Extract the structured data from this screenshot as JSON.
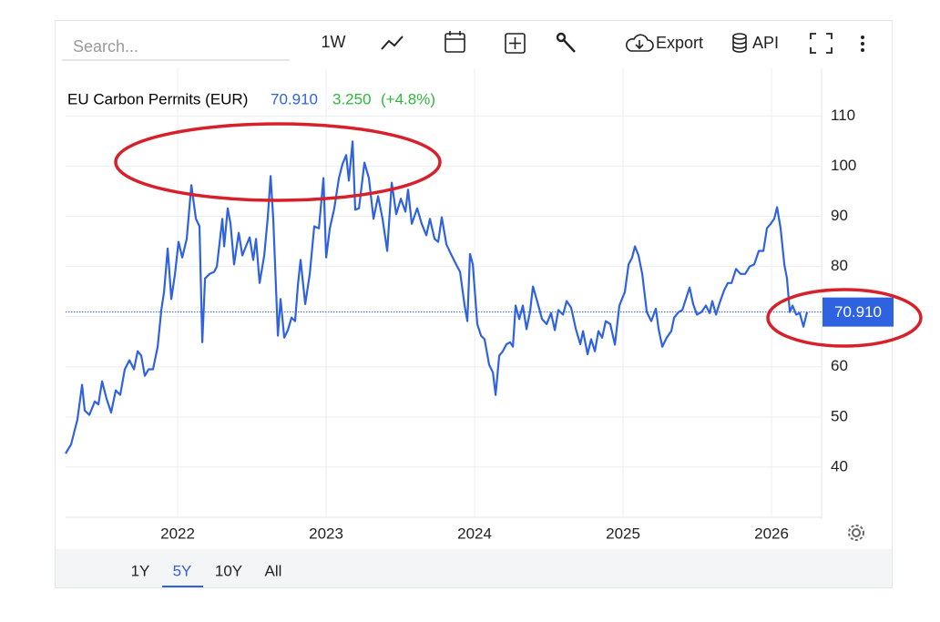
{
  "ui": {
    "search": "Search...",
    "interval": "1W",
    "export": "Export",
    "api": "API",
    "ranges": [
      "1Y",
      "5Y",
      "10Y",
      "All"
    ]
  },
  "chart_data": {
    "type": "line",
    "title": "EU Carbon Permits (EUR)",
    "price_label": "70.910",
    "change_label": "3.250",
    "change_pct_label": "(+4.8%)",
    "color": "#2f62e0",
    "price_color": "#2f62e0",
    "change_color": "#2db83d",
    "grid": true,
    "xlim": [
      2021.245,
      2026.337
    ],
    "ylim": [
      30,
      119.5
    ],
    "xticks": [
      2022,
      2023,
      2024,
      2025,
      2026
    ],
    "yticks": [
      40,
      50,
      60,
      70,
      80,
      90,
      100,
      110
    ],
    "x": [
      2021.245,
      2021.282,
      2021.325,
      2021.356,
      2021.374,
      2021.405,
      2021.442,
      2021.466,
      2021.491,
      2021.521,
      2021.552,
      2021.583,
      2021.613,
      2021.644,
      2021.675,
      2021.706,
      2021.73,
      2021.755,
      2021.779,
      2021.804,
      2021.834,
      2021.865,
      2021.89,
      2021.908,
      2021.933,
      2021.957,
      2021.982,
      2022.006,
      2022.031,
      2022.061,
      2022.092,
      2022.123,
      2022.147,
      2022.166,
      2022.184,
      2022.215,
      2022.245,
      2022.264,
      2022.301,
      2022.313,
      2022.337,
      2022.356,
      2022.38,
      2022.411,
      2022.436,
      2022.46,
      2022.485,
      2022.509,
      2022.528,
      2022.552,
      2022.583,
      2022.607,
      2022.626,
      2022.644,
      2022.675,
      2022.693,
      2022.718,
      2022.742,
      2022.767,
      2022.791,
      2022.81,
      2022.828,
      2022.859,
      2022.89,
      2022.92,
      2022.951,
      2022.982,
      2023.0,
      2023.025,
      2023.055,
      2023.086,
      2023.11,
      2023.135,
      2023.153,
      2023.178,
      2023.196,
      2023.221,
      2023.258,
      2023.288,
      2023.319,
      2023.35,
      2023.38,
      2023.411,
      2023.442,
      2023.472,
      2023.503,
      2023.534,
      2023.552,
      2023.577,
      2023.613,
      2023.644,
      2023.675,
      2023.699,
      2023.73,
      2023.755,
      2023.779,
      2023.81,
      2023.84,
      2023.871,
      2023.902,
      2023.933,
      2023.951,
      2023.969,
      2023.988,
      2024.018,
      2024.043,
      2024.067,
      2024.098,
      2024.123,
      2024.141,
      2024.166,
      2024.19,
      2024.215,
      2024.239,
      2024.258,
      2024.276,
      2024.301,
      2024.325,
      2024.35,
      2024.374,
      2024.393,
      2024.423,
      2024.454,
      2024.485,
      2024.515,
      2024.54,
      2024.564,
      2024.595,
      2024.62,
      2024.65,
      2024.681,
      2024.712,
      2024.73,
      2024.761,
      2024.785,
      2024.81,
      2024.834,
      2024.859,
      2024.883,
      2024.914,
      2024.945,
      2024.975,
      2025.012,
      2025.037,
      2025.061,
      2025.08,
      2025.104,
      2025.129,
      2025.16,
      2025.19,
      2025.221,
      2025.239,
      2025.264,
      2025.294,
      2025.325,
      2025.344,
      2025.374,
      2025.399,
      2025.423,
      2025.448,
      2025.472,
      2025.497,
      2025.528,
      2025.558,
      2025.583,
      2025.601,
      2025.626,
      2025.65,
      2025.681,
      2025.706,
      2025.73,
      2025.761,
      2025.791,
      2025.822,
      2025.853,
      2025.883,
      2025.914,
      2025.945,
      2025.969,
      2025.994,
      2026.018,
      2026.037,
      2026.061,
      2026.086,
      2026.104,
      2026.123,
      2026.141,
      2026.166,
      2026.19,
      2026.215,
      2026.239
    ],
    "values": [
      42.7,
      44.5,
      49.5,
      56.4,
      51.3,
      50.4,
      53.1,
      52.5,
      57.1,
      53.6,
      50.9,
      55.3,
      54.4,
      59.5,
      61.3,
      59.5,
      63.1,
      62.2,
      58.2,
      59.5,
      59.5,
      64.0,
      71.3,
      74.9,
      83.6,
      73.5,
      78.5,
      84.9,
      81.8,
      85.5,
      96.2,
      89.5,
      88.0,
      64.9,
      77.6,
      78.5,
      78.9,
      80.0,
      89.5,
      84.0,
      91.6,
      88.5,
      80.4,
      86.7,
      82.2,
      84.0,
      85.8,
      81.3,
      85.5,
      76.7,
      82.2,
      89.8,
      98.0,
      89.5,
      66.2,
      73.5,
      65.8,
      67.3,
      69.8,
      69.1,
      76.4,
      81.3,
      72.5,
      78.5,
      88.0,
      87.6,
      97.6,
      81.8,
      87.6,
      91.6,
      97.6,
      100.4,
      102.2,
      97.1,
      104.9,
      91.3,
      91.6,
      100.7,
      97.6,
      89.5,
      94.0,
      89.5,
      83.1,
      96.7,
      90.4,
      93.5,
      90.9,
      95.3,
      88.5,
      91.6,
      88.5,
      86.2,
      89.5,
      85.5,
      84.9,
      89.8,
      84.4,
      82.5,
      80.7,
      78.9,
      72.2,
      69.1,
      82.5,
      80.4,
      68.5,
      66.2,
      65.5,
      60.4,
      58.9,
      54.4,
      62.2,
      63.1,
      64.5,
      64.9,
      64.0,
      72.2,
      69.5,
      72.2,
      67.5,
      71.1,
      76.0,
      72.9,
      69.5,
      68.5,
      70.7,
      67.3,
      71.3,
      70.4,
      73.1,
      71.8,
      67.6,
      64.5,
      67.1,
      62.5,
      65.5,
      63.1,
      67.1,
      65.8,
      69.1,
      68.5,
      64.4,
      72.2,
      74.9,
      80.4,
      81.8,
      84.0,
      82.2,
      78.5,
      70.9,
      69.1,
      71.6,
      67.6,
      64.0,
      65.8,
      67.1,
      69.8,
      70.9,
      71.3,
      73.5,
      75.8,
      72.5,
      70.4,
      70.9,
      72.2,
      70.7,
      73.1,
      70.4,
      72.7,
      75.3,
      76.7,
      76.7,
      79.5,
      78.5,
      78.5,
      80.0,
      80.4,
      83.1,
      83.1,
      87.6,
      88.5,
      89.5,
      91.8,
      87.6,
      80.4,
      77.6,
      70.9,
      72.2,
      70.4,
      70.7,
      68.0,
      70.91
    ]
  }
}
